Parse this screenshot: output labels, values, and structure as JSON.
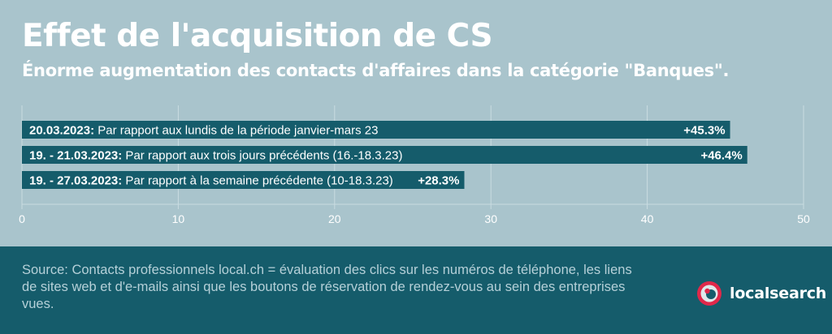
{
  "header": {
    "title": "Effet de l'acquisition de CS",
    "subtitle": "Énorme augmentation des contacts d'affaires dans la catégorie \"Banques\"."
  },
  "chart_data": {
    "type": "bar",
    "orientation": "horizontal",
    "categories": [
      {
        "date": "20.03.2023:",
        "text": " Par rapport aux lundis de la période janvier-mars 23"
      },
      {
        "date": "19. - 21.03.2023:",
        "text": " Par rapport aux trois jours précédents (16.-18.3.23)"
      },
      {
        "date": "19. - 27.03.2023:",
        "text": " Par rapport à la semaine précédente (10-18.3.23)"
      }
    ],
    "values": [
      45.3,
      46.4,
      28.3
    ],
    "value_labels": [
      "+45.3%",
      "+46.4%",
      "+28.3%"
    ],
    "xlim": [
      0,
      50
    ],
    "xticks": [
      "0",
      "10",
      "20",
      "30",
      "40",
      "50"
    ],
    "grid": true,
    "bar_color": "#155c6b",
    "grid_color": "#c9dce1",
    "tick_color": "#ffffff"
  },
  "footer": {
    "source": "Source: Contacts professionnels local.ch = évaluation des clics sur les numéros de téléphone, les liens de sites web et d'e-mails ainsi que les boutons de réservation de rendez-vous au sein des entreprises vues.",
    "brand": "localsearch",
    "brand_colors": {
      "red": "#e0284a",
      "light": "#dfe8ea"
    }
  }
}
